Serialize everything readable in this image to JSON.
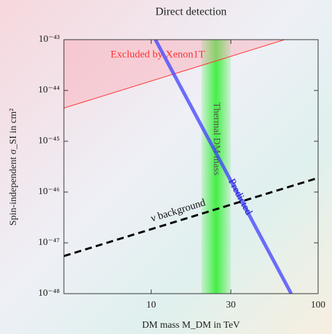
{
  "chart_data": {
    "type": "line",
    "title": "Direct detection",
    "x_label": "DM mass M_DM in TeV",
    "y_label": "Spin-independent σ_SI in cm²",
    "log_x": true,
    "log_y": true,
    "xlim": [
      3,
      100
    ],
    "xticks": [
      10,
      30,
      100
    ],
    "ylim": [
      1e-48,
      1e-43
    ],
    "yticks": [
      {
        "value": 1e-48,
        "label": "10⁻⁴⁸"
      },
      {
        "value": 1e-47,
        "label": "10⁻⁴⁷"
      },
      {
        "value": 1e-46,
        "label": "10⁻⁴⁶"
      },
      {
        "value": 1e-45,
        "label": "10⁻⁴⁵"
      },
      {
        "value": 1e-44,
        "label": "10⁻⁴⁴"
      },
      {
        "value": 1e-43,
        "label": "10⁻⁴³"
      }
    ],
    "series": [
      {
        "name": "Excluded by Xenon1T",
        "color": "#ff3030",
        "x": [
          3,
          63
        ],
        "values": [
          4.5e-45,
          1e-43
        ]
      },
      {
        "name": "Predicted",
        "color": "#4040ff",
        "x": [
          10.6,
          69
        ],
        "values": [
          1e-43,
          1e-48
        ]
      },
      {
        "name": "ν background",
        "color": "#000000",
        "x": [
          3,
          100
        ],
        "values": [
          5.5e-48,
          1.9e-46
        ]
      }
    ],
    "band": {
      "name": "Thermal DM mass",
      "x": [
        20,
        30
      ],
      "color": "#33ee33"
    }
  }
}
